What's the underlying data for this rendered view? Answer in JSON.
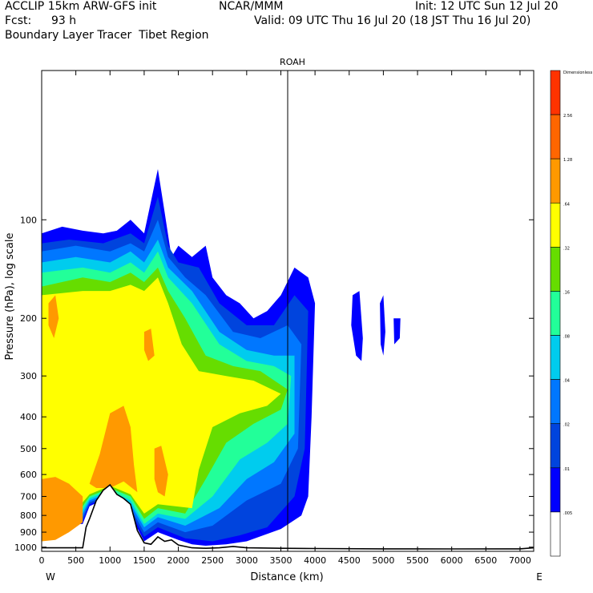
{
  "header": {
    "model": "ACCLIP 15km ARW-GFS init",
    "org": "NCAR/MMM",
    "init": "Init: 12 UTC Sun 12 Jul 20",
    "fcst_label": "Fcst:",
    "fcst_value": "93 h",
    "valid": "Valid: 09 UTC Thu 16 Jul 20 (18 JST Thu 16 Jul 20)",
    "field": "Boundary Layer Tracer  Tibet Region"
  },
  "chart_data": {
    "type": "contour",
    "title": "ROAH",
    "xlabel": "Distance (km)",
    "ylabel": "Pressure (hPa), log scale",
    "x_left_label": "W",
    "x_right_label": "E",
    "xlim": [
      0,
      7200
    ],
    "ylim": [
      1030,
      35
    ],
    "y_scale": "log",
    "xticks": [
      0,
      500,
      1000,
      1500,
      2000,
      2500,
      3000,
      3500,
      4000,
      4500,
      5000,
      5500,
      6000,
      6500,
      7000
    ],
    "yticks": [
      100,
      200,
      300,
      400,
      500,
      600,
      700,
      800,
      900,
      1000
    ],
    "vertical_marker_km": 3600,
    "colorbar": {
      "units": "Dimensionless",
      "levels": [
        {
          "label": "",
          "color": "#ff3300"
        },
        {
          "label": "2.56",
          "color": "#ff6600"
        },
        {
          "label": "1.28",
          "color": "#ff9900"
        },
        {
          "label": ".64",
          "color": "#ffff00"
        },
        {
          "label": ".32",
          "color": "#66dd00"
        },
        {
          "label": ".16",
          "color": "#22ff99"
        },
        {
          "label": ".08",
          "color": "#00ccee"
        },
        {
          "label": ".04",
          "color": "#0077ff"
        },
        {
          "label": ".02",
          "color": "#0044dd"
        },
        {
          "label": ".01",
          "color": "#0000ff"
        },
        {
          "label": ".005",
          "color": "#ffffff"
        }
      ]
    },
    "terrain_km_hpa": [
      [
        0,
        1005
      ],
      [
        300,
        1005
      ],
      [
        600,
        1005
      ],
      [
        650,
        870
      ],
      [
        700,
        820
      ],
      [
        800,
        720
      ],
      [
        900,
        670
      ],
      [
        1000,
        645
      ],
      [
        1100,
        690
      ],
      [
        1200,
        710
      ],
      [
        1300,
        740
      ],
      [
        1400,
        890
      ],
      [
        1500,
        970
      ],
      [
        1600,
        980
      ],
      [
        1700,
        930
      ],
      [
        1800,
        960
      ],
      [
        1900,
        950
      ],
      [
        2000,
        985
      ],
      [
        2200,
        1005
      ],
      [
        2400,
        1008
      ],
      [
        2600,
        1005
      ],
      [
        2800,
        995
      ],
      [
        3000,
        1005
      ],
      [
        3500,
        1008
      ],
      [
        4000,
        1010
      ],
      [
        5000,
        1012
      ],
      [
        6000,
        1013
      ],
      [
        7000,
        1012
      ],
      [
        7200,
        1005
      ]
    ],
    "tracer_regions": [
      {
        "level": ".01",
        "color": "#0000ff",
        "polygon": [
          [
            0,
            110
          ],
          [
            300,
            105
          ],
          [
            600,
            108
          ],
          [
            900,
            110
          ],
          [
            1100,
            108
          ],
          [
            1300,
            100
          ],
          [
            1500,
            110
          ],
          [
            1700,
            70
          ],
          [
            1800,
            95
          ],
          [
            1900,
            130
          ],
          [
            2000,
            120
          ],
          [
            2200,
            130
          ],
          [
            2400,
            120
          ],
          [
            2500,
            150
          ],
          [
            2700,
            170
          ],
          [
            2900,
            180
          ],
          [
            3100,
            200
          ],
          [
            3300,
            190
          ],
          [
            3500,
            170
          ],
          [
            3700,
            140
          ],
          [
            3900,
            150
          ],
          [
            4000,
            180
          ],
          [
            3950,
            400
          ],
          [
            3900,
            700
          ],
          [
            3800,
            800
          ],
          [
            3500,
            880
          ],
          [
            3000,
            960
          ],
          [
            2700,
            980
          ],
          [
            2400,
            990
          ],
          [
            2200,
            980
          ],
          [
            2000,
            950
          ],
          [
            1700,
            900
          ],
          [
            1500,
            960
          ],
          [
            1300,
            800
          ],
          [
            1000,
            700
          ],
          [
            700,
            750
          ],
          [
            600,
            850
          ],
          [
            0,
            850
          ]
        ]
      },
      {
        "level": ".01",
        "color": "#0000ff",
        "polygon": [
          [
            4550,
            170
          ],
          [
            4650,
            165
          ],
          [
            4700,
            230
          ],
          [
            4680,
            270
          ],
          [
            4600,
            260
          ],
          [
            4530,
            210
          ]
        ]
      },
      {
        "level": ".01",
        "color": "#0000ff",
        "polygon": [
          [
            4950,
            180
          ],
          [
            5000,
            170
          ],
          [
            5030,
            220
          ],
          [
            5000,
            260
          ],
          [
            4960,
            240
          ]
        ]
      },
      {
        "level": ".01",
        "color": "#0000ff",
        "polygon": [
          [
            5150,
            200
          ],
          [
            5250,
            200
          ],
          [
            5240,
            230
          ],
          [
            5160,
            240
          ]
        ]
      },
      {
        "level": ".02",
        "color": "#0044dd",
        "polygon": [
          [
            0,
            118
          ],
          [
            400,
            115
          ],
          [
            900,
            118
          ],
          [
            1300,
            110
          ],
          [
            1500,
            118
          ],
          [
            1700,
            85
          ],
          [
            1850,
            120
          ],
          [
            2000,
            135
          ],
          [
            2300,
            140
          ],
          [
            2600,
            180
          ],
          [
            3000,
            210
          ],
          [
            3400,
            210
          ],
          [
            3700,
            170
          ],
          [
            3900,
            190
          ],
          [
            3850,
            500
          ],
          [
            3700,
            700
          ],
          [
            3300,
            870
          ],
          [
            2900,
            920
          ],
          [
            2500,
            960
          ],
          [
            2100,
            940
          ],
          [
            1700,
            870
          ],
          [
            1500,
            930
          ],
          [
            1300,
            780
          ],
          [
            1000,
            700
          ],
          [
            700,
            740
          ],
          [
            600,
            830
          ],
          [
            0,
            830
          ]
        ]
      },
      {
        "level": ".04",
        "color": "#0077ff",
        "polygon": [
          [
            0,
            125
          ],
          [
            500,
            120
          ],
          [
            1000,
            125
          ],
          [
            1300,
            118
          ],
          [
            1500,
            125
          ],
          [
            1700,
            100
          ],
          [
            1850,
            130
          ],
          [
            2100,
            150
          ],
          [
            2400,
            170
          ],
          [
            2800,
            220
          ],
          [
            3200,
            230
          ],
          [
            3600,
            210
          ],
          [
            3800,
            240
          ],
          [
            3750,
            500
          ],
          [
            3500,
            640
          ],
          [
            3000,
            720
          ],
          [
            2500,
            860
          ],
          [
            2100,
            900
          ],
          [
            1700,
            840
          ],
          [
            1500,
            900
          ],
          [
            1300,
            760
          ],
          [
            1000,
            690
          ],
          [
            700,
            730
          ],
          [
            600,
            810
          ],
          [
            0,
            810
          ]
        ]
      },
      {
        "level": ".08",
        "color": "#00ccee",
        "polygon": [
          [
            0,
            135
          ],
          [
            500,
            130
          ],
          [
            1000,
            135
          ],
          [
            1300,
            125
          ],
          [
            1500,
            135
          ],
          [
            1700,
            115
          ],
          [
            1850,
            140
          ],
          [
            2200,
            165
          ],
          [
            2600,
            220
          ],
          [
            3000,
            250
          ],
          [
            3400,
            260
          ],
          [
            3700,
            260
          ],
          [
            3700,
            450
          ],
          [
            3400,
            550
          ],
          [
            3000,
            620
          ],
          [
            2600,
            760
          ],
          [
            2100,
            860
          ],
          [
            1700,
            810
          ],
          [
            1500,
            870
          ],
          [
            1300,
            740
          ],
          [
            1000,
            680
          ],
          [
            700,
            720
          ],
          [
            600,
            790
          ],
          [
            0,
            790
          ]
        ]
      },
      {
        "level": ".16",
        "color": "#22ff99",
        "polygon": [
          [
            0,
            145
          ],
          [
            600,
            140
          ],
          [
            1000,
            145
          ],
          [
            1300,
            135
          ],
          [
            1500,
            145
          ],
          [
            1700,
            125
          ],
          [
            1850,
            150
          ],
          [
            2200,
            180
          ],
          [
            2600,
            240
          ],
          [
            3000,
            270
          ],
          [
            3400,
            280
          ],
          [
            3650,
            300
          ],
          [
            3600,
            420
          ],
          [
            3300,
            480
          ],
          [
            2900,
            540
          ],
          [
            2500,
            700
          ],
          [
            2100,
            820
          ],
          [
            1700,
            790
          ],
          [
            1500,
            850
          ],
          [
            1300,
            720
          ],
          [
            1000,
            670
          ],
          [
            700,
            710
          ],
          [
            600,
            770
          ],
          [
            0,
            770
          ]
        ]
      },
      {
        "level": ".32",
        "color": "#66dd00",
        "polygon": [
          [
            0,
            160
          ],
          [
            600,
            150
          ],
          [
            1000,
            155
          ],
          [
            1300,
            145
          ],
          [
            1500,
            155
          ],
          [
            1700,
            140
          ],
          [
            1850,
            165
          ],
          [
            2100,
            200
          ],
          [
            2400,
            260
          ],
          [
            2800,
            280
          ],
          [
            3200,
            290
          ],
          [
            3600,
            330
          ],
          [
            3500,
            380
          ],
          [
            3100,
            420
          ],
          [
            2700,
            480
          ],
          [
            2400,
            620
          ],
          [
            2100,
            790
          ],
          [
            1700,
            760
          ],
          [
            1500,
            820
          ],
          [
            1300,
            700
          ],
          [
            1000,
            660
          ],
          [
            700,
            700
          ],
          [
            600,
            750
          ],
          [
            0,
            750
          ]
        ]
      },
      {
        "level": ".64",
        "color": "#ffff00",
        "polygon": [
          [
            0,
            170
          ],
          [
            600,
            165
          ],
          [
            1000,
            165
          ],
          [
            1300,
            158
          ],
          [
            1500,
            165
          ],
          [
            1700,
            150
          ],
          [
            1850,
            180
          ],
          [
            2050,
            240
          ],
          [
            2300,
            290
          ],
          [
            2700,
            300
          ],
          [
            3100,
            310
          ],
          [
            3500,
            340
          ],
          [
            3300,
            370
          ],
          [
            2900,
            390
          ],
          [
            2500,
            430
          ],
          [
            2300,
            580
          ],
          [
            2200,
            760
          ],
          [
            1700,
            740
          ],
          [
            1500,
            790
          ],
          [
            1300,
            690
          ],
          [
            1000,
            650
          ],
          [
            700,
            690
          ],
          [
            600,
            730
          ],
          [
            0,
            730
          ]
        ]
      },
      {
        "level": "1.28",
        "color": "#ff9900",
        "polygon": [
          [
            1000,
            390
          ],
          [
            1200,
            370
          ],
          [
            1300,
            430
          ],
          [
            1350,
            560
          ],
          [
            1400,
            680
          ],
          [
            1200,
            630
          ],
          [
            1000,
            660
          ],
          [
            800,
            660
          ],
          [
            700,
            640
          ],
          [
            850,
            520
          ]
        ]
      },
      {
        "level": "1.28",
        "color": "#ff9900",
        "polygon": [
          [
            1650,
            500
          ],
          [
            1750,
            490
          ],
          [
            1850,
            600
          ],
          [
            1800,
            700
          ],
          [
            1700,
            680
          ],
          [
            1650,
            620
          ]
        ]
      },
      {
        "level": "1.28",
        "color": "#ff9900",
        "polygon": [
          [
            0,
            620
          ],
          [
            200,
            610
          ],
          [
            400,
            640
          ],
          [
            600,
            700
          ],
          [
            600,
            840
          ],
          [
            400,
            900
          ],
          [
            200,
            950
          ],
          [
            0,
            960
          ]
        ]
      },
      {
        "level": "1.28",
        "color": "#ff9900",
        "polygon": [
          [
            100,
            180
          ],
          [
            200,
            170
          ],
          [
            250,
            200
          ],
          [
            180,
            230
          ],
          [
            100,
            210
          ]
        ]
      },
      {
        "level": "1.28",
        "color": "#ff9900",
        "polygon": [
          [
            1500,
            220
          ],
          [
            1600,
            215
          ],
          [
            1650,
            260
          ],
          [
            1560,
            270
          ],
          [
            1500,
            250
          ]
        ]
      }
    ]
  }
}
